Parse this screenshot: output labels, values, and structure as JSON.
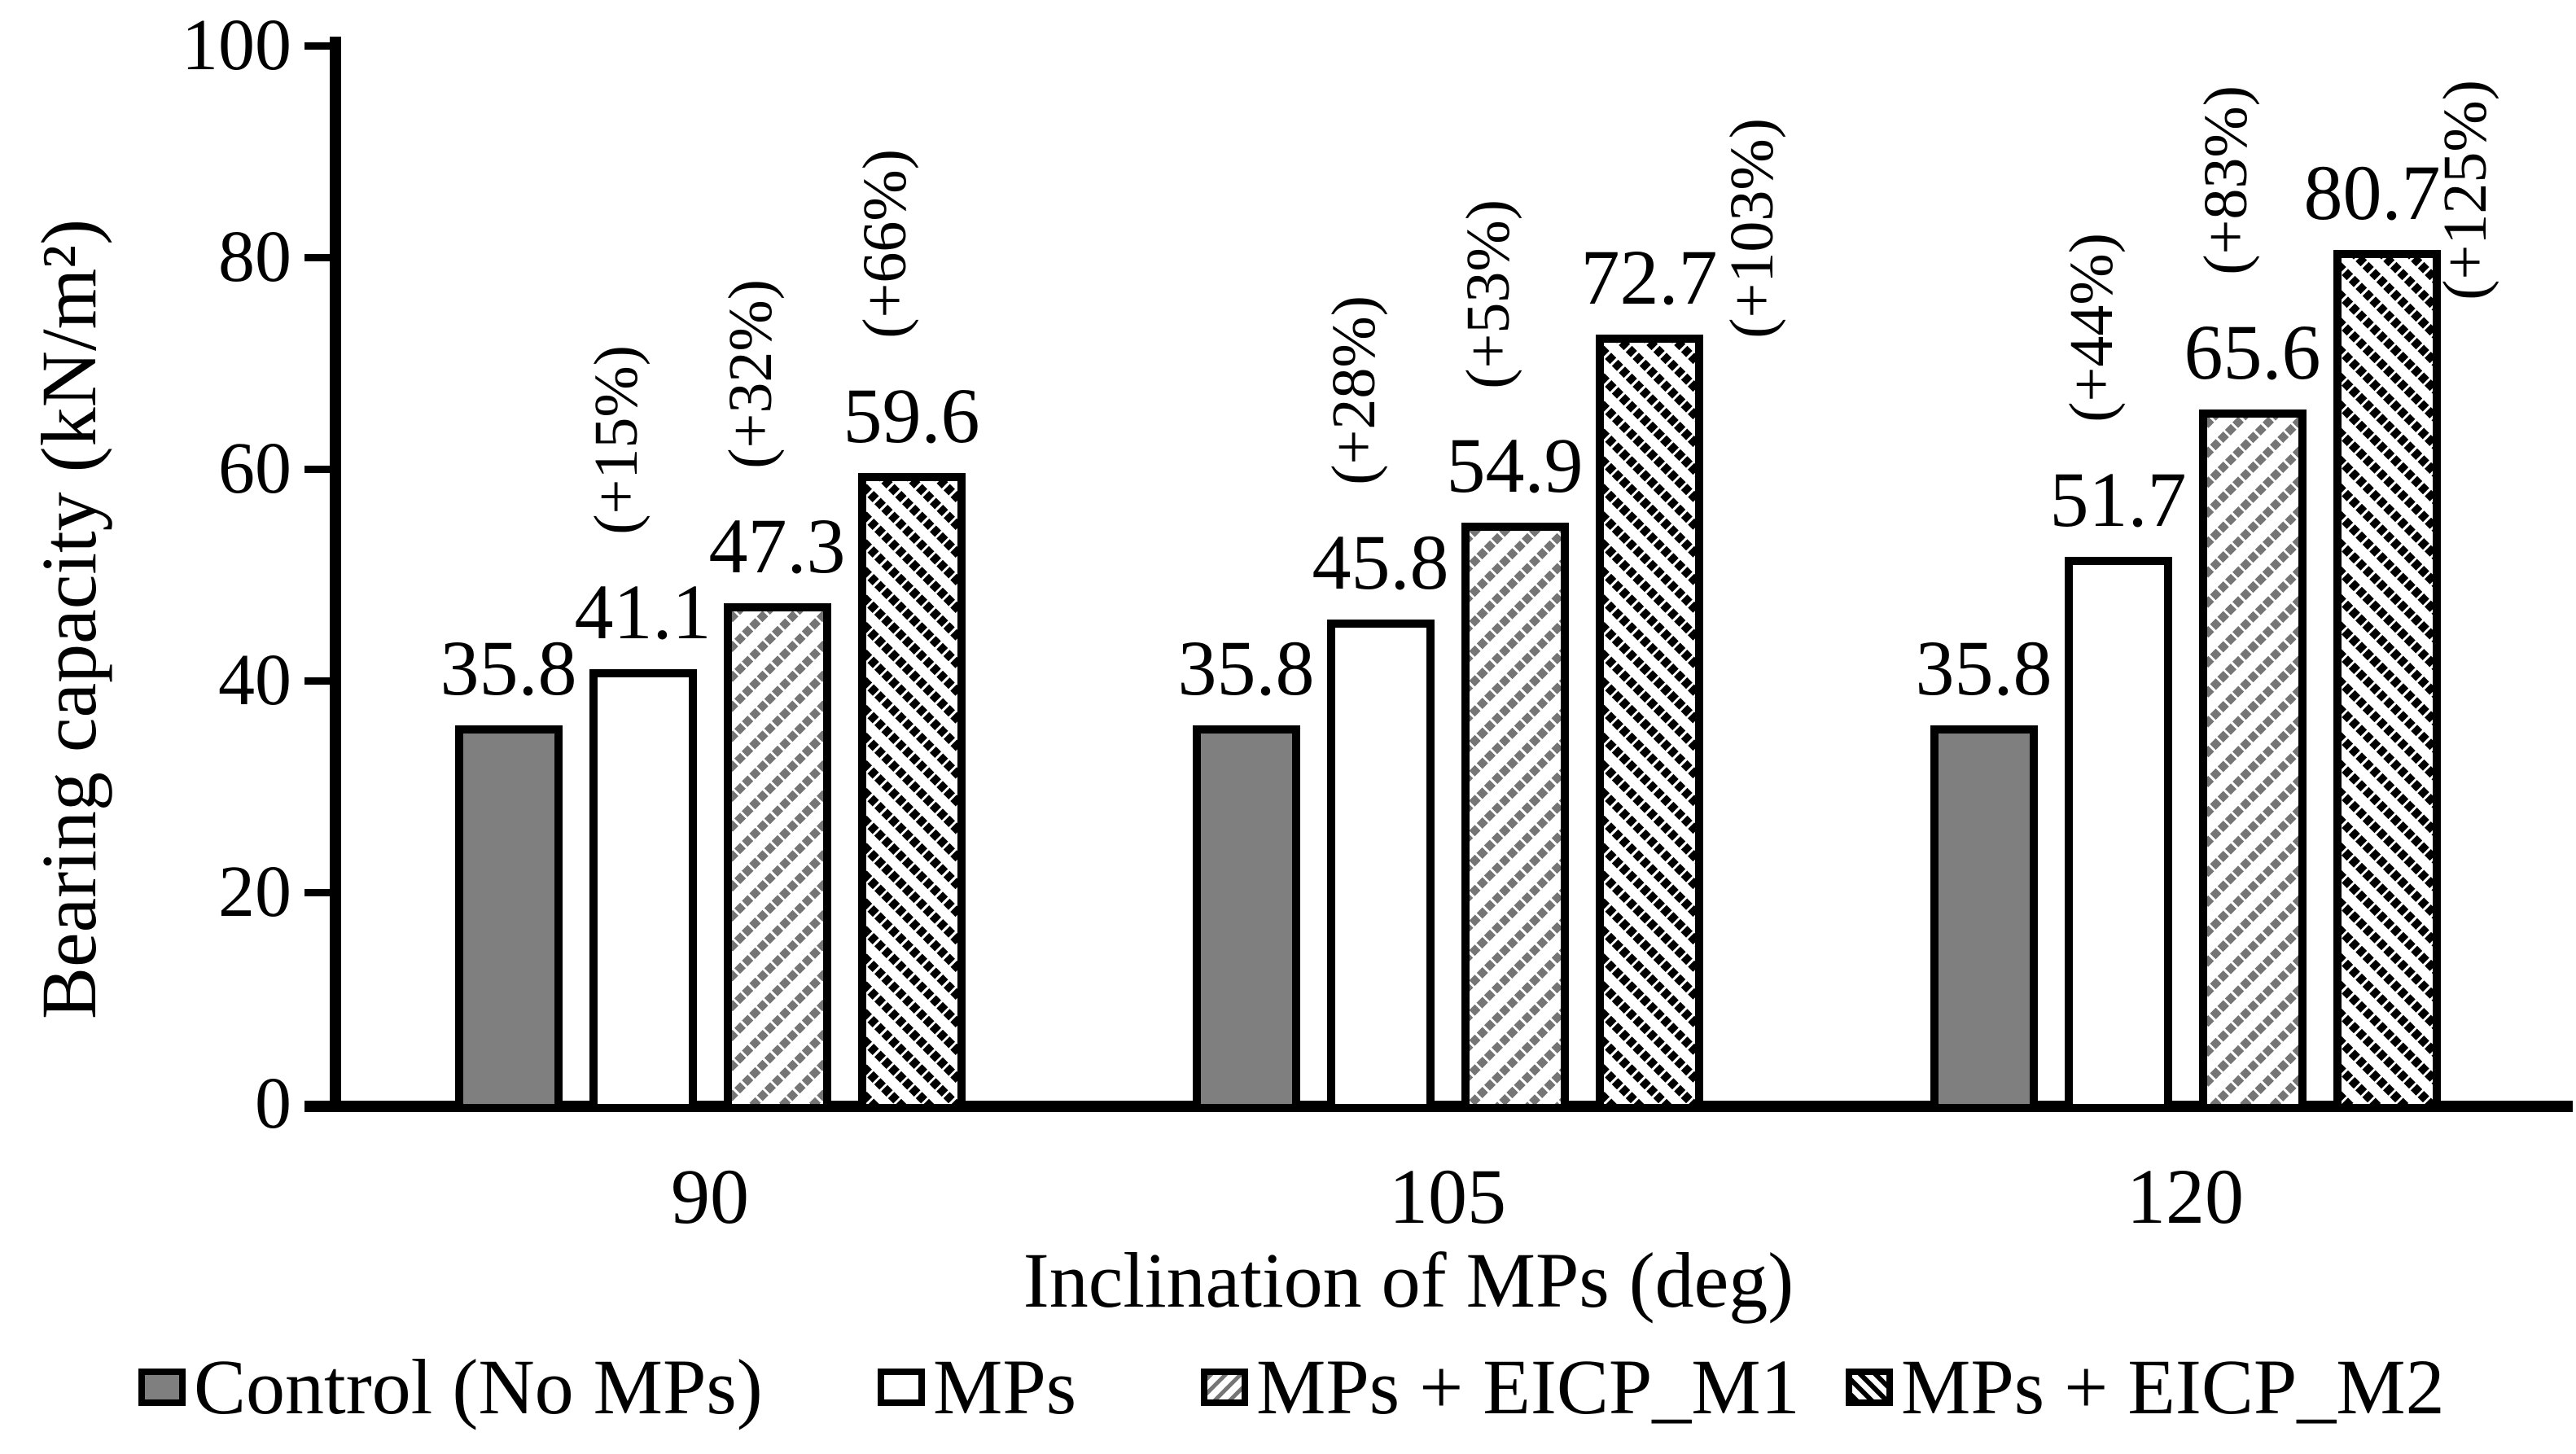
{
  "chart_data": {
    "type": "bar",
    "title": "",
    "xlabel": "Inclination of MPs (deg)",
    "ylabel": "Bearing capacity (kN/m²)",
    "categories": [
      "90",
      "105",
      "120"
    ],
    "ylim": [
      0,
      100
    ],
    "yticks": [
      0,
      20,
      40,
      60,
      80,
      100
    ],
    "grid": false,
    "legend_position": "bottom",
    "series": [
      {
        "name": "Control (No MPs)",
        "pattern": "solid-gray",
        "values": [
          35.8,
          35.8,
          35.8
        ],
        "pct_labels": [
          "",
          "",
          ""
        ]
      },
      {
        "name": "MPs",
        "pattern": "outline-white",
        "values": [
          41.1,
          45.8,
          51.7
        ],
        "pct_labels": [
          "(+15%)",
          "(+28%)",
          "(+44%)"
        ]
      },
      {
        "name": "MPs + EICP_M1",
        "pattern": "hatch-forward-gray",
        "values": [
          47.3,
          54.9,
          65.6
        ],
        "pct_labels": [
          "(+32%)",
          "(+53%)",
          "(+83%)"
        ]
      },
      {
        "name": "MPs + EICP_M2",
        "pattern": "hatch-back-black",
        "values": [
          59.6,
          72.7,
          80.7
        ],
        "pct_labels": [
          "(+66%)",
          "(+103%)",
          "(+125%)"
        ],
        "pct_placement": [
          "above",
          "side",
          "side"
        ]
      }
    ],
    "colors": {
      "control_fill": "#7f7f7f",
      "hatch_gray": "#757575",
      "outline": "#000000",
      "background": "#ffffff"
    }
  }
}
